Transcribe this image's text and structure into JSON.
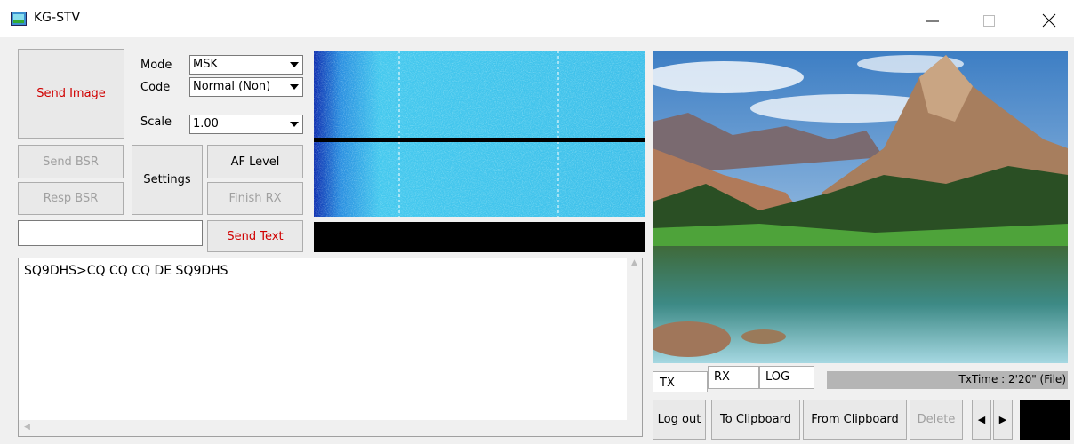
{
  "window": {
    "title": "KG-STV"
  },
  "controls": {
    "send_image": "Send Image",
    "mode_label": "Mode",
    "mode_value": "MSK",
    "code_label": "Code",
    "code_value": "Normal (Non)",
    "scale_label": "Scale",
    "scale_value": "1.00",
    "send_bsr": "Send BSR",
    "settings": "Settings",
    "af_level": "AF Level",
    "resp_bsr": "Resp BSR",
    "finish_rx": "Finish RX",
    "send_text": "Send Text"
  },
  "log": {
    "text": "SQ9DHS>CQ CQ CQ DE SQ9DHS"
  },
  "tabs": [
    "TX",
    "RX",
    "LOG"
  ],
  "status": {
    "tx_time": "TxTime : 2'20\" (File)"
  },
  "buttons": [
    "Log out",
    "To Clipboard",
    "From Clipboard",
    "Delete"
  ]
}
